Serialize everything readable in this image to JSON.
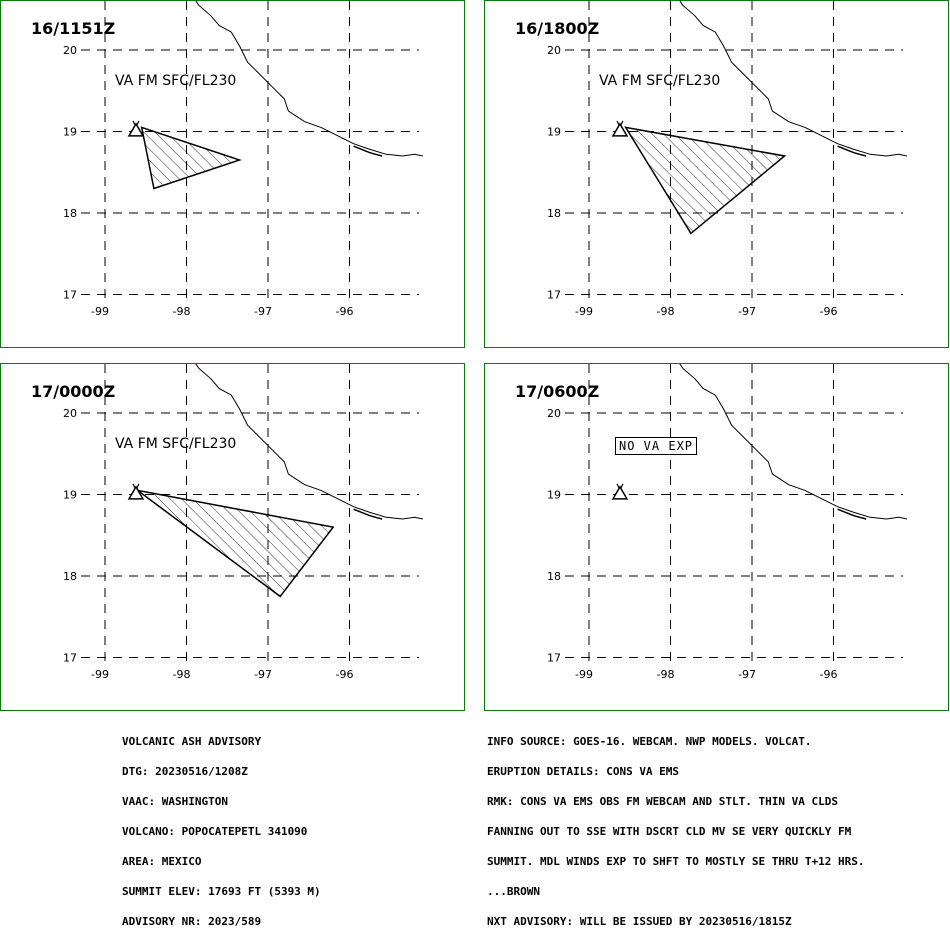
{
  "panels": [
    {
      "time": "16/1151Z",
      "label": "VA FM SFC/FL230",
      "polygon": [
        [
          -98.55,
          19.05
        ],
        [
          -97.35,
          18.65
        ],
        [
          -98.4,
          18.3
        ]
      ],
      "no_va": ""
    },
    {
      "time": "16/1800Z",
      "label": "VA FM SFC/FL230",
      "polygon": [
        [
          -98.55,
          19.05
        ],
        [
          -96.6,
          18.7
        ],
        [
          -97.75,
          17.75
        ]
      ],
      "no_va": ""
    },
    {
      "time": "17/0000Z",
      "label": "VA FM SFC/FL230",
      "polygon": [
        [
          -98.6,
          19.05
        ],
        [
          -96.2,
          18.6
        ],
        [
          -96.85,
          17.75
        ]
      ],
      "no_va": ""
    },
    {
      "time": "17/0600Z",
      "label": "",
      "polygon": [],
      "no_va": "NO VA EXP"
    }
  ],
  "axes": {
    "lat_ticks": [
      "20",
      "19",
      "18",
      "17"
    ],
    "lon_ticks": [
      "-99",
      "-98",
      "-97",
      "-96"
    ],
    "lat_range": [
      16.8,
      20.2
    ],
    "lon_range": [
      -99.5,
      -95.1
    ]
  },
  "volcano": {
    "name": "POPOCATEPETL",
    "lat": 19.02,
    "lon": -98.62
  },
  "advisory_left": [
    "VOLCANIC ASH ADVISORY",
    "DTG: 20230516/1208Z",
    "VAAC: WASHINGTON",
    "VOLCANO: POPOCATEPETL 341090",
    "AREA: MEXICO",
    "SUMMIT ELEV: 17693 FT (5393 M)",
    "ADVISORY NR: 2023/589"
  ],
  "advisory_right": [
    "INFO SOURCE: GOES-16. WEBCAM. NWP MODELS. VOLCAT.",
    "ERUPTION DETAILS: CONS VA EMS",
    "RMK: CONS VA EMS OBS FM WEBCAM AND STLT. THIN VA CLDS",
    "FANNING OUT TO SSE WITH DSCRT CLD MV SE VERY QUICKLY FM",
    "SUMMIT. MDL WINDS EXP TO SHFT TO MOSTLY SE THRU T+12 HRS.",
    "...BROWN",
    "NXT ADVISORY: WILL BE ISSUED BY 20230516/1815Z"
  ],
  "colors": {
    "border": "#0a7a0a",
    "ink": "#000000"
  }
}
